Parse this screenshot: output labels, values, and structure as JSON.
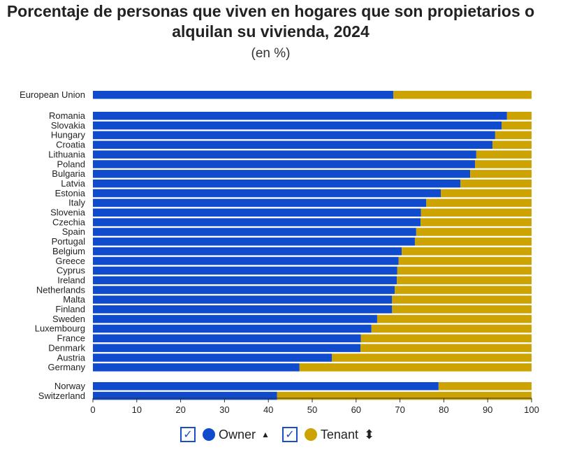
{
  "chart_data": {
    "type": "bar",
    "orientation": "horizontal",
    "stacked": true,
    "title": "Porcentaje de personas que viven en hogares que son propietarios o alquilan su vivienda, 2024",
    "subtitle": "(en %)",
    "categories": [
      "European Union",
      "Romania",
      "Slovakia",
      "Hungary",
      "Croatia",
      "Lithuania",
      "Poland",
      "Bulgaria",
      "Latvia",
      "Estonia",
      "Italy",
      "Slovenia",
      "Czechia",
      "Spain",
      "Portugal",
      "Belgium",
      "Greece",
      "Cyprus",
      "Ireland",
      "Netherlands",
      "Malta",
      "Finland",
      "Sweden",
      "Luxembourg",
      "France",
      "Denmark",
      "Austria",
      "Germany",
      "Norway",
      "Switzerland"
    ],
    "series": [
      {
        "name": "Owner",
        "color": "#0f4bcc",
        "values": [
          68.5,
          94.4,
          93.2,
          91.7,
          91.1,
          87.4,
          87.1,
          86.0,
          83.8,
          79.3,
          76.0,
          74.8,
          74.7,
          73.7,
          73.4,
          70.4,
          69.7,
          69.4,
          69.3,
          68.8,
          68.2,
          68.2,
          64.8,
          63.5,
          61.1,
          61.0,
          54.5,
          47.1,
          78.8,
          42.0
        ]
      },
      {
        "name": "Tenant",
        "color": "#cca300",
        "values": [
          31.5,
          5.6,
          6.8,
          8.3,
          8.9,
          12.6,
          12.9,
          14.0,
          16.2,
          20.7,
          24.0,
          25.2,
          25.3,
          26.3,
          26.6,
          29.6,
          30.3,
          30.6,
          30.7,
          31.2,
          31.8,
          31.8,
          35.2,
          36.5,
          38.9,
          39.0,
          45.5,
          52.9,
          21.2,
          58.0
        ]
      }
    ],
    "xlim": [
      0,
      100
    ],
    "xticks": [
      "0",
      "10",
      "20",
      "30",
      "40",
      "50",
      "60",
      "70",
      "80",
      "90",
      "100"
    ],
    "grid": false,
    "legend_position": "bottom"
  },
  "legend": {
    "owner": "Owner",
    "tenant": "Tenant",
    "checkmark": "✓",
    "sort_up": "▲",
    "sort_both": "⬍"
  }
}
